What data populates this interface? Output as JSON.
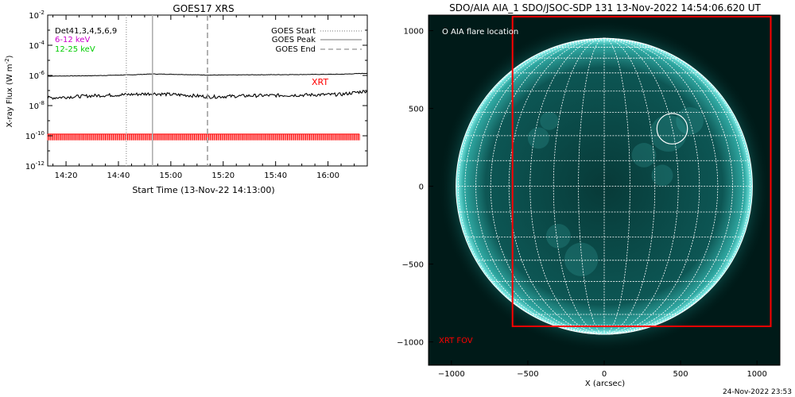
{
  "footer_timestamp": "24-Nov-2022 23:53",
  "chart_data": [
    {
      "type": "line",
      "title": "GOES17 XRS",
      "xlabel": "Start Time (13-Nov-22 14:13:00)",
      "ylabel": "X-ray Flux (W m",
      "ylabel_superscript": "-2",
      "ylabel_suffix": ")",
      "ylog": true,
      "xlim": [
        "14:13",
        "16:15"
      ],
      "ylim": [
        1e-12,
        0.01
      ],
      "x_ticks": [
        "14:20",
        "14:40",
        "15:00",
        "15:20",
        "15:40",
        "16:00"
      ],
      "y_ticks": [
        {
          "value": 0.01,
          "label": "10",
          "sup": "-2"
        },
        {
          "value": 0.0001,
          "label": "10",
          "sup": "-4"
        },
        {
          "value": 1e-06,
          "label": "10",
          "sup": "-6"
        },
        {
          "value": 1e-08,
          "label": "10",
          "sup": "-8"
        },
        {
          "value": 1e-10,
          "label": "10",
          "sup": "-10"
        },
        {
          "value": 1e-12,
          "label": "10",
          "sup": "-12"
        }
      ],
      "channels_label": "Det41,3,4,5,6,9",
      "series": [
        {
          "name": "6-12 keV",
          "color": "#000000",
          "label_color": "#cc00cc",
          "x": [
            "14:13",
            "14:30",
            "14:45",
            "14:53",
            "15:05",
            "15:15",
            "15:30",
            "15:50",
            "16:05",
            "16:15"
          ],
          "values": [
            9e-07,
            9.6e-07,
            1.1e-06,
            1.25e-06,
            1.15e-06,
            1.05e-06,
            1.1e-06,
            1.15e-06,
            1.2e-06,
            1.4e-06
          ]
        },
        {
          "name": "12-25 keV",
          "color": "#000000",
          "label_color": "#00cc00",
          "x": [
            "14:13",
            "14:30",
            "14:45",
            "14:53",
            "15:05",
            "15:15",
            "15:30",
            "15:50",
            "16:05",
            "16:15"
          ],
          "values": [
            3.2e-08,
            4.5e-08,
            5.5e-08,
            6.2e-08,
            5e-08,
            3.8e-08,
            4.5e-08,
            5e-08,
            5.5e-08,
            9.5e-08
          ]
        }
      ],
      "markers": [
        {
          "name": "GOES Start",
          "time": "14:43",
          "style": "dotted"
        },
        {
          "name": "GOES Peak",
          "time": "14:53",
          "style": "solid"
        },
        {
          "name": "GOES End",
          "time": "15:14",
          "style": "dashed"
        }
      ],
      "xrt_label": "XRT",
      "xrt_color": "#ff0000",
      "xrt_band": {
        "start": "14:13",
        "end": "16:12",
        "ymin": 5e-11,
        "ymax": 1.3e-10
      }
    },
    {
      "type": "image",
      "title": "SDO/AIA AIA_1 SDO/JSOC-SDP 131 13-Nov-2022 14:54:06.620 UT",
      "xlabel": "X (arcsec)",
      "ylabel": "",
      "xlim": [
        -1150,
        1150
      ],
      "ylim": [
        -1150,
        1100
      ],
      "x_ticks": [
        -1000,
        -500,
        0,
        500,
        1000
      ],
      "y_ticks": [
        1000,
        500,
        0,
        -500,
        -1000
      ],
      "x_tick_labels": [
        "−1000",
        "−500",
        "0",
        "500",
        "1000"
      ],
      "y_tick_labels": [
        "1000",
        "500",
        "0",
        "−500",
        "−1000"
      ],
      "solar_radius": 970,
      "grid_step_deg": 10,
      "colors": {
        "background": "#001a18",
        "disk": "#0e5a58",
        "limb": "#6ff2ec",
        "grid": "#ffffff"
      },
      "flare_legend": "O AIA flare location",
      "flare_location": {
        "x": 445,
        "y": 370,
        "r": 100
      },
      "xrt_fov": {
        "label": "XRT FOV",
        "xmin": -600,
        "xmax": 1090,
        "ymin": -900,
        "ymax": 1090,
        "color": "#ff0000"
      }
    }
  ]
}
